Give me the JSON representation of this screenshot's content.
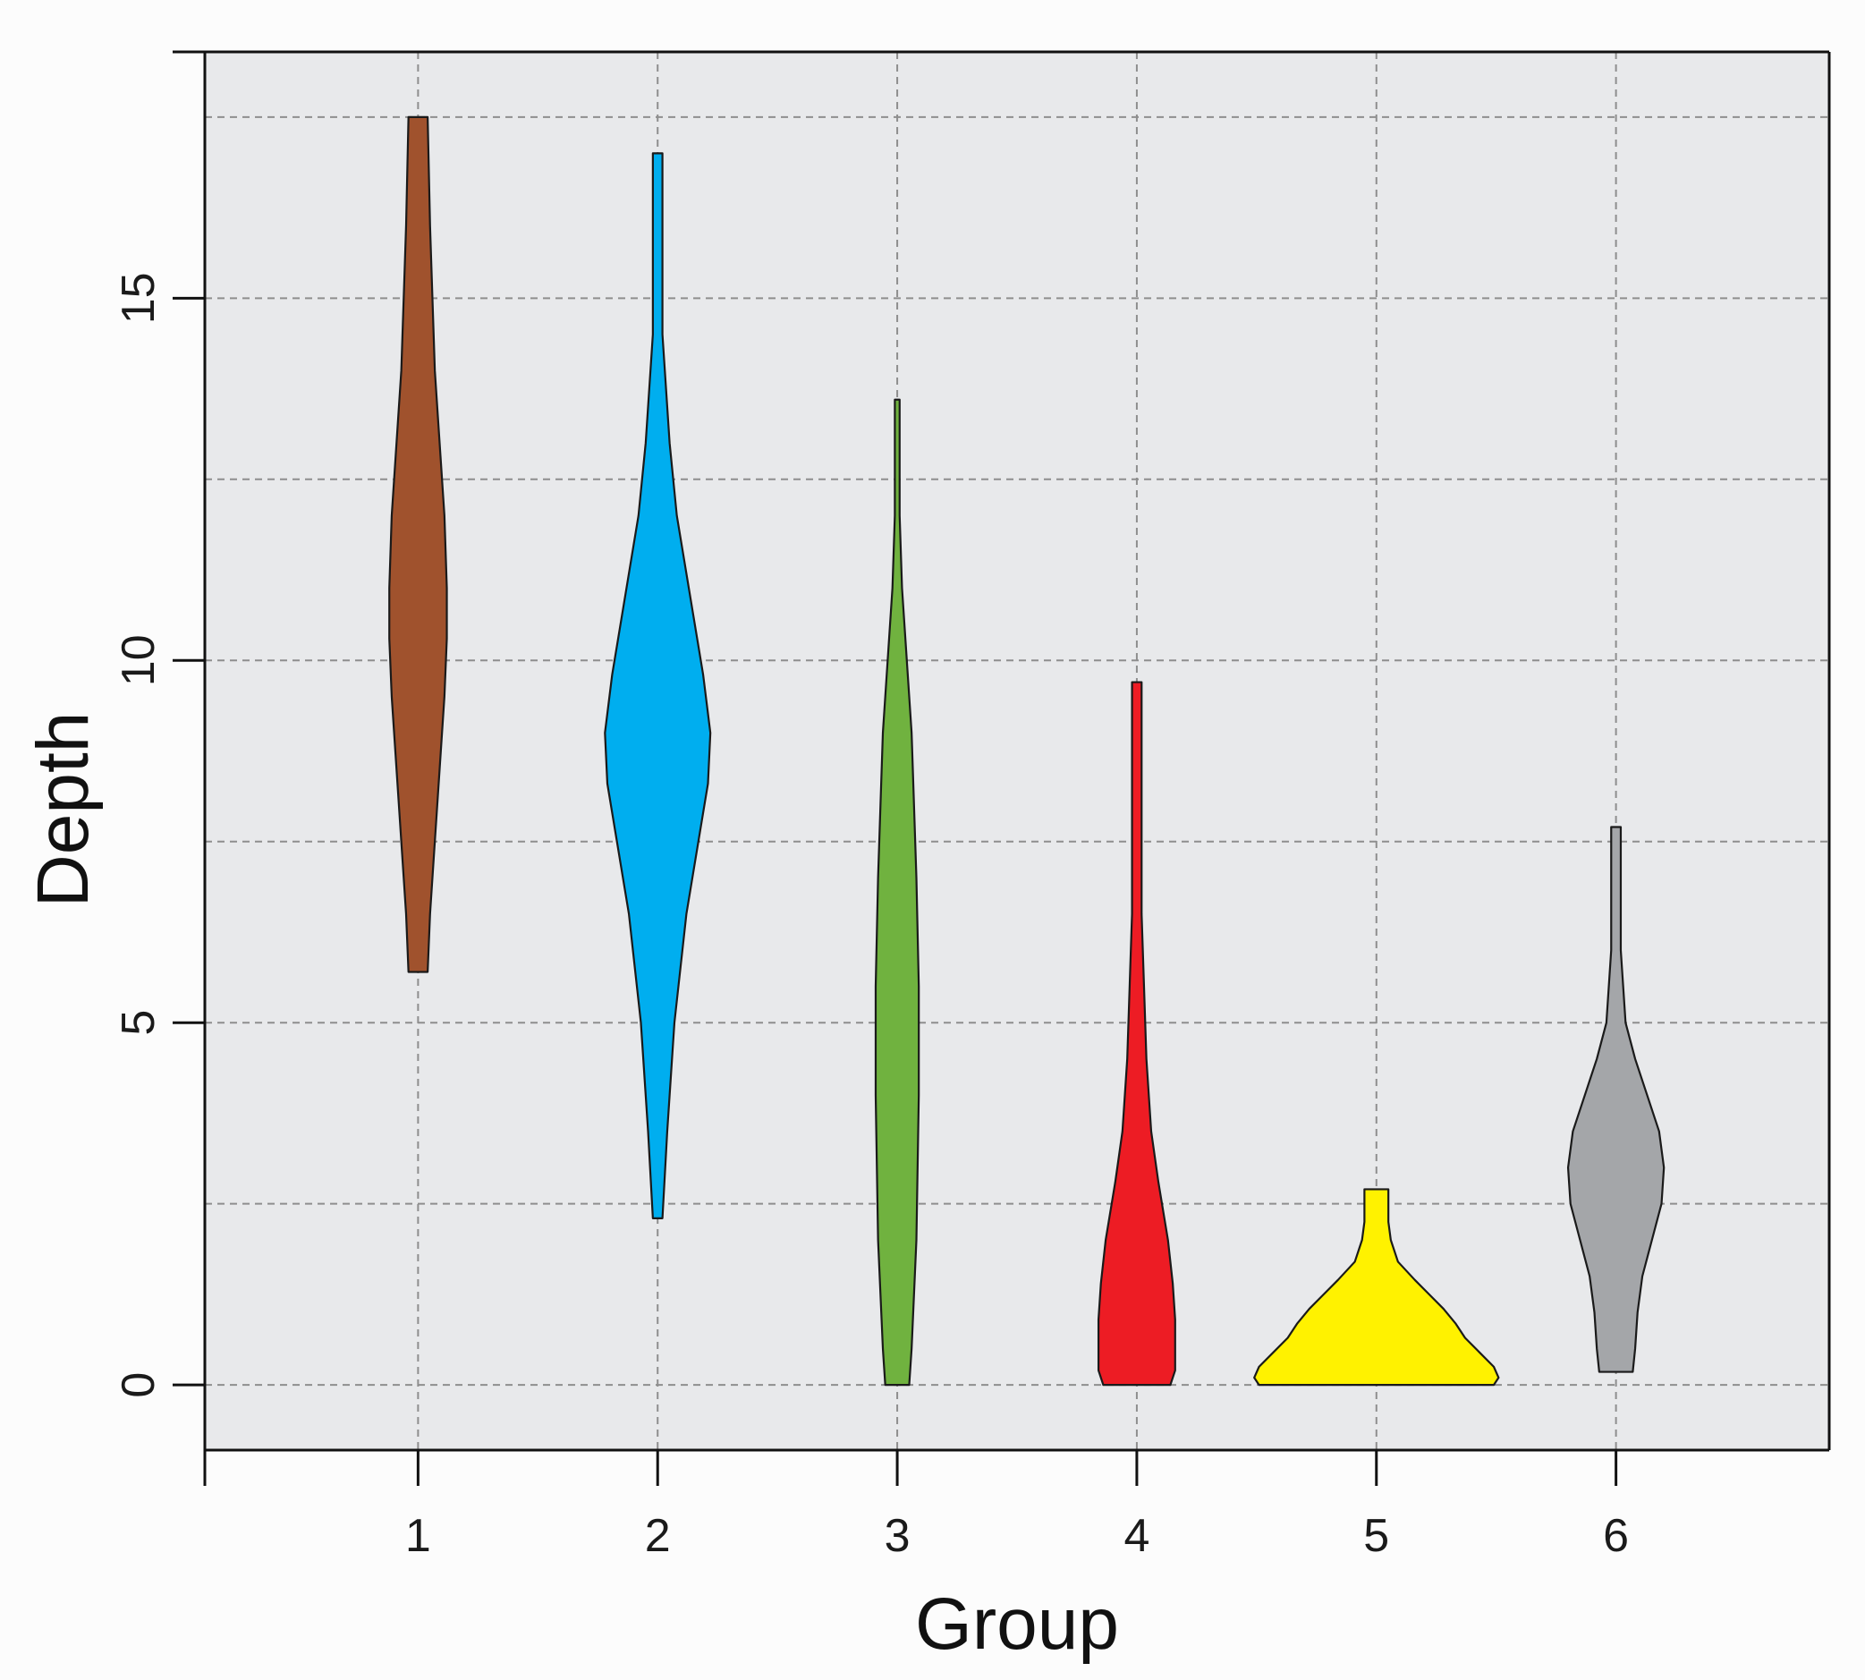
{
  "chart_data": {
    "type": "violin",
    "xlabel": "Group",
    "ylabel": "Depth",
    "categories": [
      "1",
      "2",
      "3",
      "4",
      "5",
      "6"
    ],
    "x_ticks": [
      "1",
      "2",
      "3",
      "4",
      "5",
      "6"
    ],
    "y_ticks": [
      "0",
      "5",
      "10",
      "15"
    ],
    "xlim": [
      0.11,
      6.89
    ],
    "ylim": [
      -0.9,
      18.4
    ],
    "grid": true,
    "grid_style": "dashed",
    "y_minor_grid": [
      2.5,
      7.5,
      12.5,
      17.5
    ],
    "background": "#e8e9eb",
    "series": [
      {
        "group": "1",
        "color": "#a0522d",
        "min": 5.7,
        "max": 17.5,
        "profile": [
          [
            5.7,
            0.04
          ],
          [
            6.5,
            0.05
          ],
          [
            7.5,
            0.07
          ],
          [
            8.5,
            0.09
          ],
          [
            9.5,
            0.11
          ],
          [
            10.3,
            0.12
          ],
          [
            11.0,
            0.12
          ],
          [
            12.0,
            0.11
          ],
          [
            13.0,
            0.09
          ],
          [
            14.0,
            0.07
          ],
          [
            15.0,
            0.06
          ],
          [
            16.0,
            0.05
          ],
          [
            17.5,
            0.04
          ]
        ]
      },
      {
        "group": "2",
        "color": "#00aeef",
        "min": 2.3,
        "max": 17.0,
        "profile": [
          [
            2.3,
            0.02
          ],
          [
            3.5,
            0.04
          ],
          [
            5.0,
            0.07
          ],
          [
            6.5,
            0.12
          ],
          [
            7.5,
            0.17
          ],
          [
            8.3,
            0.21
          ],
          [
            9.0,
            0.22
          ],
          [
            9.8,
            0.19
          ],
          [
            11.0,
            0.13
          ],
          [
            12.0,
            0.08
          ],
          [
            13.0,
            0.05
          ],
          [
            14.5,
            0.02
          ],
          [
            16.0,
            0.02
          ],
          [
            17.0,
            0.02
          ]
        ]
      },
      {
        "group": "3",
        "color": "#70b23f",
        "min": 0.0,
        "max": 13.6,
        "profile": [
          [
            0.0,
            0.05
          ],
          [
            0.5,
            0.06
          ],
          [
            2.0,
            0.08
          ],
          [
            4.0,
            0.09
          ],
          [
            5.5,
            0.09
          ],
          [
            7.0,
            0.08
          ],
          [
            8.0,
            0.07
          ],
          [
            9.0,
            0.06
          ],
          [
            10.0,
            0.04
          ],
          [
            11.0,
            0.02
          ],
          [
            12.0,
            0.01
          ],
          [
            13.6,
            0.01
          ]
        ]
      },
      {
        "group": "4",
        "color": "#ed1c24",
        "min": 0.0,
        "max": 9.7,
        "profile": [
          [
            0.0,
            0.14
          ],
          [
            0.2,
            0.16
          ],
          [
            0.5,
            0.16
          ],
          [
            0.9,
            0.16
          ],
          [
            1.4,
            0.15
          ],
          [
            2.0,
            0.13
          ],
          [
            2.8,
            0.09
          ],
          [
            3.5,
            0.06
          ],
          [
            4.5,
            0.04
          ],
          [
            5.5,
            0.03
          ],
          [
            6.5,
            0.02
          ],
          [
            8.0,
            0.02
          ],
          [
            9.7,
            0.02
          ]
        ]
      },
      {
        "group": "5",
        "color": "#fff200",
        "min": 0.0,
        "max": 2.7,
        "profile": [
          [
            0.0,
            0.49
          ],
          [
            0.1,
            0.51
          ],
          [
            0.25,
            0.49
          ],
          [
            0.45,
            0.43
          ],
          [
            0.65,
            0.37
          ],
          [
            0.85,
            0.33
          ],
          [
            1.05,
            0.28
          ],
          [
            1.25,
            0.22
          ],
          [
            1.45,
            0.16
          ],
          [
            1.7,
            0.09
          ],
          [
            2.0,
            0.06
          ],
          [
            2.25,
            0.05
          ],
          [
            2.7,
            0.05
          ]
        ]
      },
      {
        "group": "6",
        "color": "#a4a6a9",
        "min": 0.18,
        "max": 7.7,
        "profile": [
          [
            0.18,
            0.07
          ],
          [
            0.5,
            0.08
          ],
          [
            1.0,
            0.09
          ],
          [
            1.5,
            0.11
          ],
          [
            2.0,
            0.15
          ],
          [
            2.5,
            0.19
          ],
          [
            3.0,
            0.2
          ],
          [
            3.5,
            0.18
          ],
          [
            4.0,
            0.13
          ],
          [
            4.5,
            0.08
          ],
          [
            5.0,
            0.04
          ],
          [
            6.0,
            0.02
          ],
          [
            7.0,
            0.02
          ],
          [
            7.7,
            0.02
          ]
        ]
      }
    ]
  }
}
